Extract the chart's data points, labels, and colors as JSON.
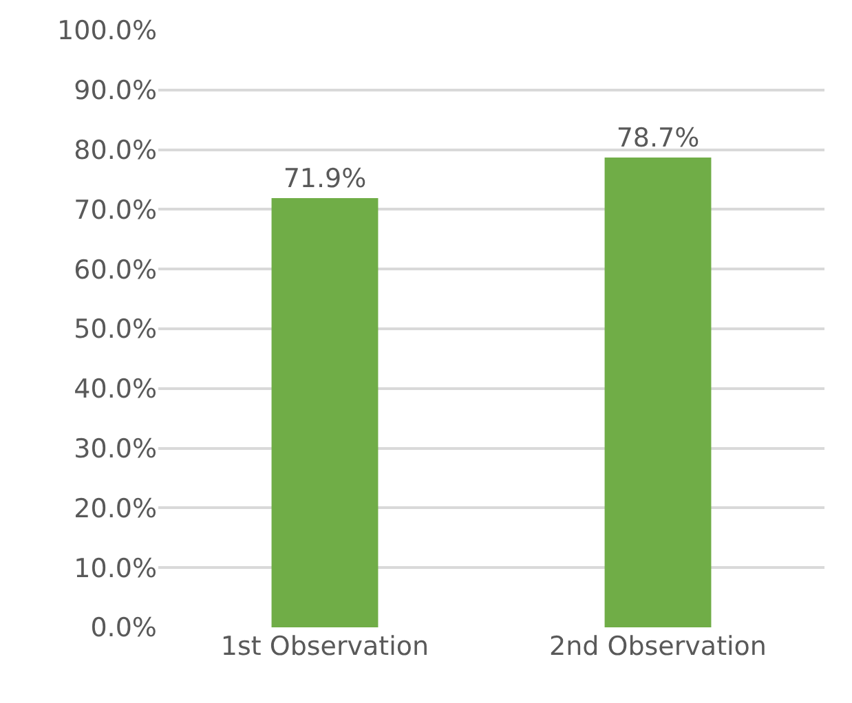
{
  "chart_data": {
    "type": "bar",
    "categories": [
      "1st Observation",
      "2nd Observation"
    ],
    "values": [
      71.9,
      78.7
    ],
    "value_labels": [
      "71.9%",
      "78.7%"
    ],
    "color": "#70ad47",
    "ylim": [
      0,
      100
    ],
    "yticks": [
      {
        "value": 0,
        "label": "0.0%"
      },
      {
        "value": 10,
        "label": "10.0%"
      },
      {
        "value": 20,
        "label": "20.0%"
      },
      {
        "value": 30,
        "label": "30.0%"
      },
      {
        "value": 40,
        "label": "40.0%"
      },
      {
        "value": 50,
        "label": "50.0%"
      },
      {
        "value": 60,
        "label": "60.0%"
      },
      {
        "value": 70,
        "label": "70.0%"
      },
      {
        "value": 80,
        "label": "80.0%"
      },
      {
        "value": 90,
        "label": "90.0%"
      },
      {
        "value": 100,
        "label": "100.0%"
      }
    ],
    "grid": "y",
    "legend": false
  }
}
